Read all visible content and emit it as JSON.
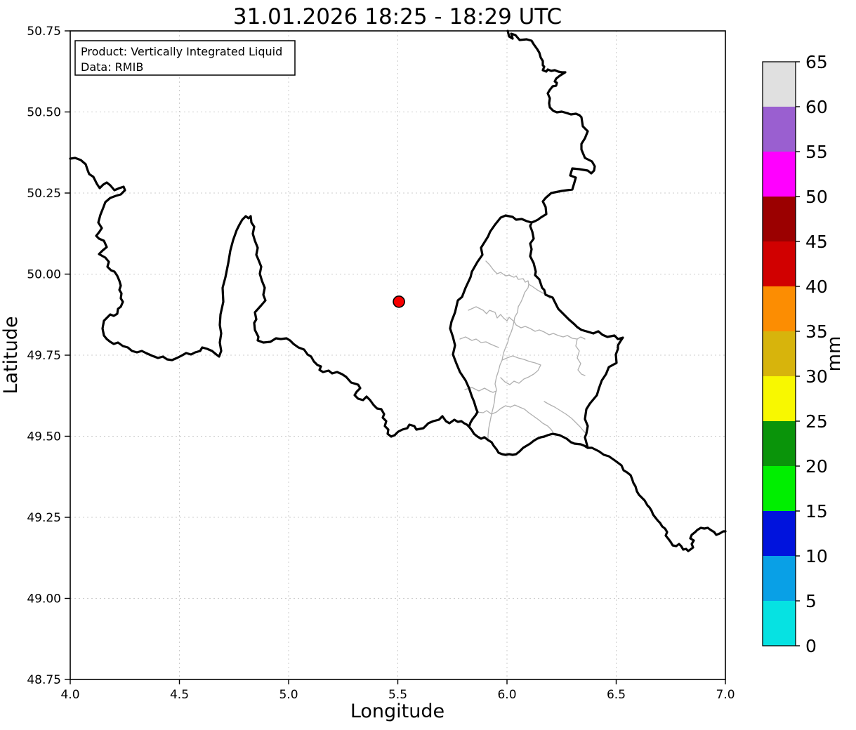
{
  "figure": {
    "title": "31.01.2026 18:25 - 18:29 UTC",
    "info_box": {
      "product_line": "Product: Vertically Integrated Liquid",
      "data_line": "Data: RMIB"
    },
    "x_axis": {
      "label": "Longitude",
      "tick_labels": [
        "4.0",
        "4.5",
        "5.0",
        "5.5",
        "6.0",
        "6.5",
        "7.0"
      ]
    },
    "y_axis": {
      "label": "Latitude",
      "tick_labels": [
        "50.75",
        "50.50",
        "50.25",
        "50.00",
        "49.75",
        "49.50",
        "49.25",
        "49.00",
        "48.75"
      ]
    },
    "colorbar": {
      "unit_label": "mm",
      "tick_labels": [
        "0",
        "5",
        "10",
        "15",
        "20",
        "25",
        "30",
        "35",
        "40",
        "45",
        "50",
        "55",
        "60",
        "65"
      ],
      "segment_colors_bottom_to_top": [
        "#06e2e2",
        "#09a0e6",
        "#0013dd",
        "#00ef00",
        "#0a940a",
        "#f8f800",
        "#d7b40c",
        "#fc8d02",
        "#d10000",
        "#9b0000",
        "#ff00ff",
        "#9a5fd0",
        "#e0e0e0"
      ]
    },
    "marker": {
      "lon": 5.505,
      "lat": 49.915,
      "fill": "#f80000",
      "edge": "#000000"
    }
  },
  "chart_data": {
    "type": "map",
    "title": "31.01.2026 18:25 - 18:29 UTC",
    "product": "Vertically Integrated Liquid",
    "data_source": "RMIB",
    "xlabel": "Longitude",
    "ylabel": "Latitude",
    "xlim": [
      4.0,
      7.0
    ],
    "ylim": [
      48.75,
      50.75
    ],
    "x_ticks": [
      4.0,
      4.5,
      5.0,
      5.5,
      6.0,
      6.5,
      7.0
    ],
    "y_ticks": [
      50.75,
      50.5,
      50.25,
      50.0,
      49.75,
      49.5,
      49.25,
      49.0,
      48.75
    ],
    "grid": true,
    "colorbar": {
      "label": "mm",
      "orientation": "vertical-right",
      "levels": [
        0,
        5,
        10,
        15,
        20,
        25,
        30,
        35,
        40,
        45,
        50,
        55,
        60,
        65
      ],
      "colors_low_to_high": [
        "#06e2e2",
        "#09a0e6",
        "#0013dd",
        "#00ef00",
        "#0a940a",
        "#f8f800",
        "#d7b40c",
        "#fc8d02",
        "#d10000",
        "#9b0000",
        "#ff00ff",
        "#9a5fd0",
        "#e0e0e0"
      ]
    },
    "field": "no VIL precipitation echoes visible in the displayed domain (blank white field)",
    "points": [
      {
        "name": "radar location marker",
        "lon": 5.505,
        "lat": 49.915,
        "style": "red filled circle with black edge"
      }
    ],
    "map_features": [
      "national borders of Belgium / France / Germany / Luxembourg drawn as thick black lines",
      "Luxembourg canton borders drawn as thin gray lines"
    ],
    "annotation_box_position": "upper-left inside axes"
  }
}
